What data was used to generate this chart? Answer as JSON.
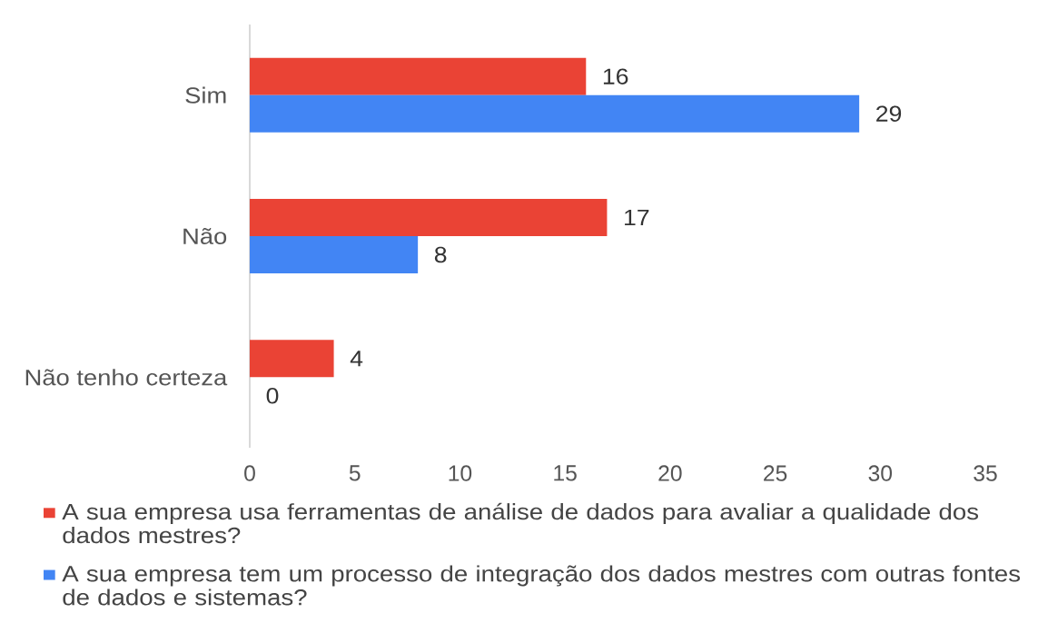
{
  "chart_data": {
    "type": "bar",
    "orientation": "horizontal",
    "categories": [
      "Sim",
      "Não",
      "Não tenho certeza"
    ],
    "series": [
      {
        "name": "A sua empresa usa ferramentas de análise de dados para avaliar a qualidade dos dados mestres?",
        "color": "#ea4335",
        "values": [
          16,
          17,
          4
        ]
      },
      {
        "name": "A sua empresa tem um processo de integração dos dados mestres com outras fontes de dados e sistemas?",
        "color": "#4285f4",
        "values": [
          29,
          8,
          0
        ]
      }
    ],
    "xlim": [
      0,
      35
    ],
    "xticks": [
      0,
      5,
      10,
      15,
      20,
      25,
      30,
      35
    ],
    "data_labels": true,
    "legend": "bottom"
  }
}
